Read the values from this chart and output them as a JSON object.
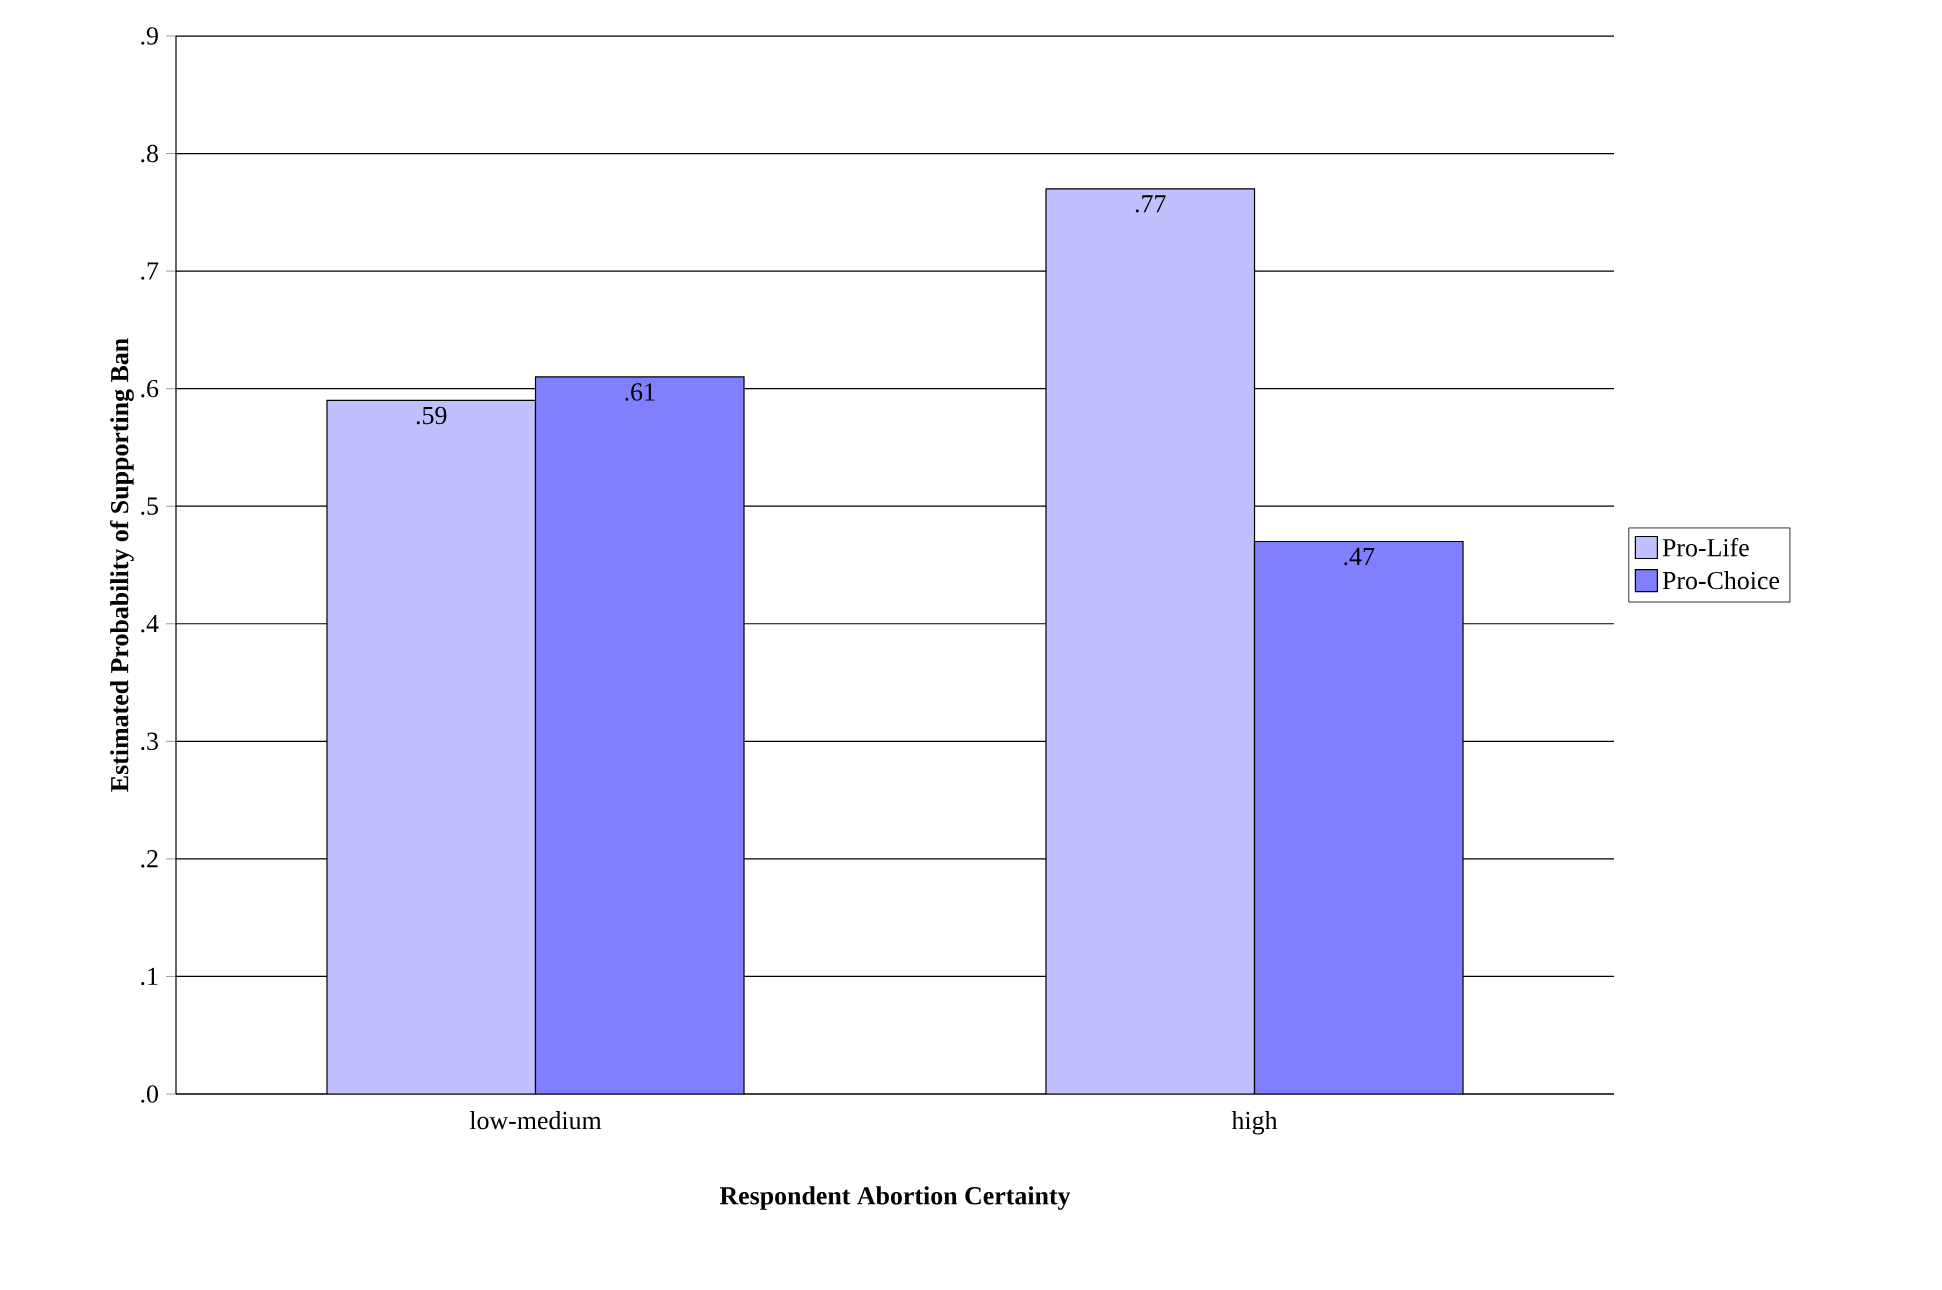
{
  "chart_data": {
    "type": "bar",
    "xlabel": "Respondent Abortion Certainty",
    "ylabel": "Estimated Probability of Supporting Ban",
    "categories": [
      "low-medium",
      "high"
    ],
    "series": [
      {
        "name": "Pro-Life",
        "color": "#c0c0ff",
        "values": [
          0.59,
          0.77
        ],
        "value_labels": [
          ".59",
          ".77"
        ]
      },
      {
        "name": "Pro-Choice",
        "color": "#8080ff",
        "values": [
          0.61,
          0.47
        ],
        "value_labels": [
          ".61",
          ".47"
        ]
      }
    ],
    "ylim": [
      0,
      0.9
    ],
    "yticks": [
      {
        "value": 0,
        "label": ".0"
      },
      {
        "value": 0.1,
        "label": ".1"
      },
      {
        "value": 0.2,
        "label": ".2"
      },
      {
        "value": 0.3,
        "label": ".3"
      },
      {
        "value": 0.4,
        "label": ".4"
      },
      {
        "value": 0.5,
        "label": ".5"
      },
      {
        "value": 0.6,
        "label": ".6"
      },
      {
        "value": 0.7,
        "label": ".7"
      },
      {
        "value": 0.8,
        "label": ".8"
      },
      {
        "value": 0.9,
        "label": ".9"
      }
    ],
    "grid": "y",
    "legend": "right"
  }
}
